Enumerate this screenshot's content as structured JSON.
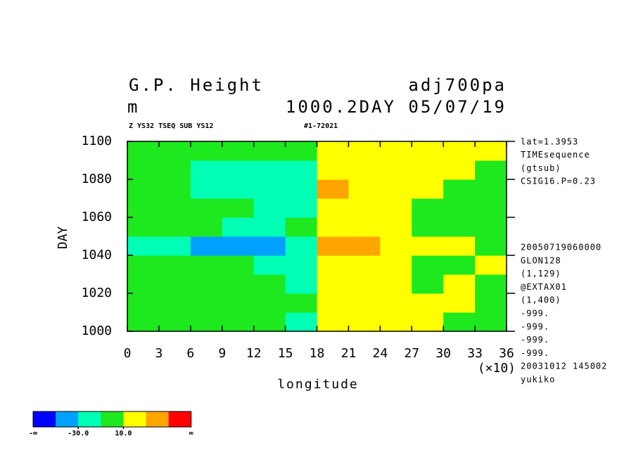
{
  "chart_data": {
    "type": "heatmap",
    "title": "G.P. Height",
    "title_right": "adj700pa",
    "units": "m",
    "subtitle_right": "1000.2DAY 05/07/19",
    "subtitle_small": "Z YS32 TSEQ SUB YS12",
    "subtitle_small_right": "#1-72021",
    "xlabel": "longitude",
    "ylabel": "DAY",
    "x_multiplier": "(×10)",
    "xlim": [
      0,
      36
    ],
    "xticks": [
      0,
      3,
      6,
      9,
      12,
      15,
      18,
      21,
      24,
      27,
      30,
      33,
      36
    ],
    "ylim": [
      1000,
      1100
    ],
    "yticks": [
      1000,
      1020,
      1040,
      1060,
      1080,
      1100
    ],
    "xbins": [
      0,
      3,
      6,
      9,
      12,
      15,
      18,
      21,
      24,
      27,
      30,
      33,
      36
    ],
    "ybins": [
      1000,
      1010,
      1020,
      1030,
      1040,
      1050,
      1060,
      1070,
      1080,
      1090,
      1100
    ],
    "z": [
      [
        2,
        0,
        -5,
        0,
        -8,
        -12,
        25,
        18,
        15,
        12,
        8,
        5
      ],
      [
        0,
        5,
        -2,
        0,
        -5,
        -10,
        22,
        20,
        15,
        12,
        10,
        8
      ],
      [
        -5,
        0,
        3,
        -5,
        -10,
        -15,
        15,
        12,
        10,
        8,
        12,
        5
      ],
      [
        0,
        -5,
        0,
        -8,
        -12,
        -15,
        20,
        15,
        10,
        8,
        5,
        10
      ],
      [
        -12,
        -25,
        -35,
        -40,
        -38,
        -20,
        38,
        30,
        28,
        15,
        10,
        5
      ],
      [
        0,
        -5,
        -10,
        -12,
        -15,
        -8,
        25,
        15,
        12,
        8,
        5,
        5
      ],
      [
        2,
        0,
        -5,
        -10,
        -12,
        -15,
        20,
        12,
        10,
        8,
        5,
        0
      ],
      [
        -5,
        -10,
        -15,
        -25,
        -30,
        -20,
        40,
        22,
        15,
        10,
        5,
        5
      ],
      [
        0,
        -5,
        -12,
        -15,
        -20,
        -25,
        25,
        20,
        18,
        15,
        10,
        8
      ],
      [
        5,
        8,
        2,
        0,
        -5,
        -10,
        28,
        22,
        20,
        25,
        15,
        10
      ]
    ],
    "colorbar": {
      "bounds": [
        -50,
        -30,
        -10,
        10,
        30,
        50
      ],
      "colors": [
        "#0000ff",
        "#00a0ff",
        "#00ffb4",
        "#1ee81e",
        "#ffff00",
        "#ffa500",
        "#ff0000"
      ],
      "low_label": "-∞",
      "high_label": "∞",
      "ticks": [
        {
          "value": -30,
          "label": "-30.0"
        },
        {
          "value": 10,
          "label": "10.0"
        }
      ]
    },
    "notes_top": [
      "lat=1.3953",
      "TIMEsequence",
      "(gtsub)",
      "CSIG16.P=0.23"
    ],
    "notes_bottom": [
      "20050719060000",
      "GLON128",
      "(1,129)",
      "@EXTAX01",
      "(1,400)",
      "-999.",
      "-999.",
      "-999.",
      "-999.",
      "20031012 145002",
      "yukiko"
    ]
  }
}
